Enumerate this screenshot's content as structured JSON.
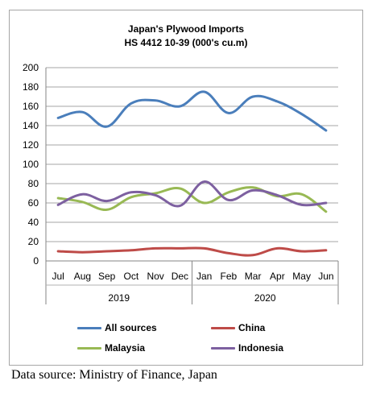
{
  "chart_data": {
    "type": "line",
    "title": "Japan's Plywood Imports",
    "subtitle": "HS 4412 10-39  (000's cu.m)",
    "categories": [
      "Jul",
      "Aug",
      "Sep",
      "Oct",
      "Nov",
      "Dec",
      "Jan",
      "Feb",
      "Mar",
      "Apr",
      "May",
      "Jun"
    ],
    "year_groups": [
      {
        "label": "2019",
        "span": 6
      },
      {
        "label": "2020",
        "span": 6
      }
    ],
    "ylim": [
      0,
      200
    ],
    "yticks": [
      0,
      20,
      40,
      60,
      80,
      100,
      120,
      140,
      160,
      180,
      200
    ],
    "grid": true,
    "legend_position": "bottom",
    "series": [
      {
        "name": "All sources",
        "color": "#4a7ebb",
        "values": [
          148,
          154,
          139,
          163,
          166,
          160,
          175,
          153,
          170,
          165,
          152,
          135
        ]
      },
      {
        "name": "China",
        "color": "#be4b48",
        "values": [
          10,
          9,
          10,
          11,
          13,
          13,
          13,
          8,
          6,
          13,
          10,
          11
        ]
      },
      {
        "name": "Malaysia",
        "color": "#98b954",
        "values": [
          65,
          61,
          53,
          66,
          70,
          75,
          60,
          71,
          76,
          67,
          69,
          51
        ]
      },
      {
        "name": "Indonesia",
        "color": "#7d60a0",
        "values": [
          58,
          69,
          62,
          71,
          68,
          57,
          82,
          63,
          73,
          68,
          58,
          60
        ]
      }
    ]
  },
  "source_note": "Data source: Ministry of Finance, Japan"
}
